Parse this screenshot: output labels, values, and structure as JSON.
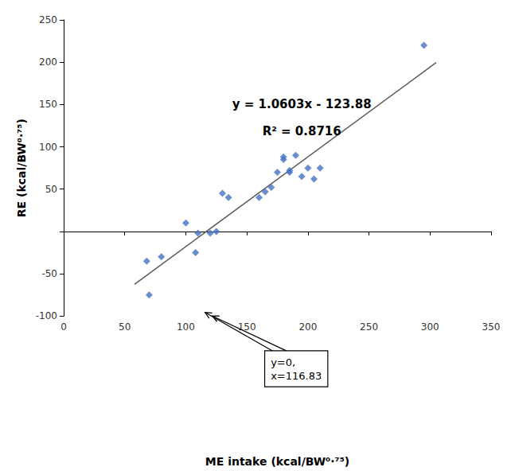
{
  "chart_data": {
    "type": "scatter",
    "xlabel": "ME intake (kcal/BW⁰·⁷⁵)",
    "ylabel": "RE (kcal/BW⁰·⁷⁵)",
    "series": [
      {
        "type": "scatter",
        "marker": "diamond",
        "color": "#4472C4",
        "x": [
          68,
          70,
          80,
          100,
          108,
          110,
          120,
          125,
          130,
          135,
          160,
          165,
          170,
          175,
          180,
          180,
          185,
          185,
          190,
          195,
          200,
          205,
          210,
          295
        ],
        "values": [
          -35,
          -75,
          -30,
          10,
          -25,
          -2,
          -2,
          0,
          45,
          40,
          40,
          47,
          52,
          70,
          85,
          88,
          72,
          70,
          90,
          65,
          75,
          62,
          75,
          220
        ]
      },
      {
        "type": "line",
        "color": "#595959",
        "x": [
          58,
          305
        ],
        "values": [
          -62.3826,
          199.5115
        ]
      }
    ],
    "xlim": [
      0,
      350
    ],
    "xticks": [
      0,
      50,
      100,
      150,
      200,
      250,
      300,
      350
    ],
    "ylim": [
      -100,
      250
    ],
    "yticks": [
      -100,
      -50,
      {
        "value": 0,
        "label": null
      },
      50,
      100,
      150,
      200,
      250
    ],
    "grid": false,
    "annotations": [
      {
        "text": "y = 1.0603x - 123.88",
        "x": 195,
        "y": 178
      },
      {
        "text": "R² = 0.8716",
        "x": 195,
        "y": 155
      },
      {
        "text": "y=0,\nx=116.83",
        "x": 165,
        "y": -32,
        "box": true,
        "arrows": [
          {
            "x": 115.83,
            "y": 1
          },
          {
            "x": 121.83,
            "y": -2
          }
        ]
      }
    ]
  }
}
